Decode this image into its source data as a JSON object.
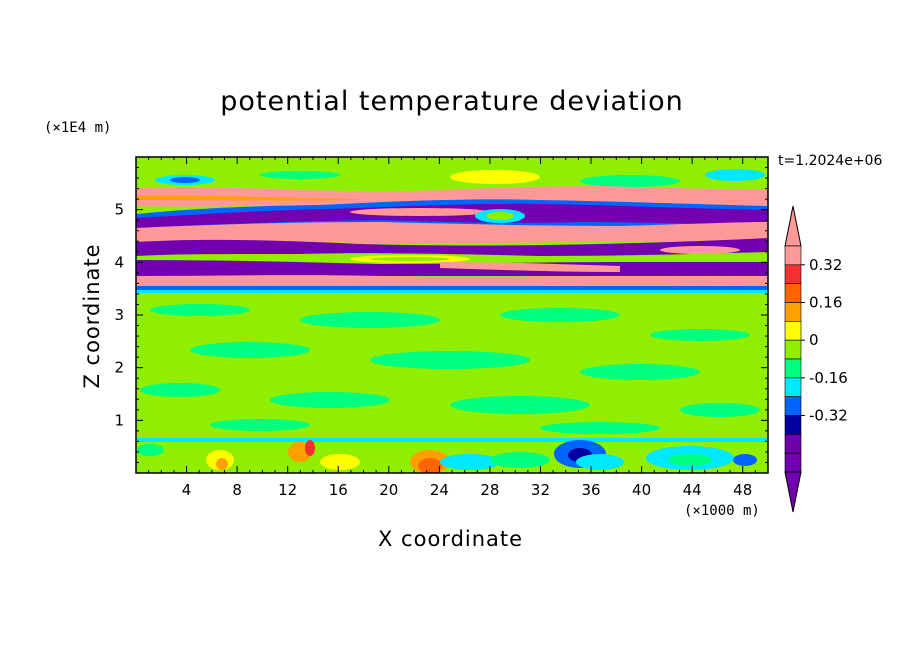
{
  "chart_data": {
    "type": "heatmap",
    "title": "potential temperature deviation",
    "xlabel": "X coordinate",
    "ylabel": "Z coordinate",
    "x_unit_label": "(×1000 m)",
    "y_unit_label": "(×1E4 m)",
    "annotation": "t=1.2024e+06",
    "xlim": [
      0,
      50
    ],
    "ylim": [
      0,
      6
    ],
    "x_ticks": [
      4,
      8,
      12,
      16,
      20,
      24,
      28,
      32,
      36,
      40,
      44,
      48
    ],
    "y_ticks": [
      1,
      2,
      3,
      4,
      5
    ],
    "colorbar": {
      "levels": [
        -0.48,
        -0.4,
        -0.32,
        -0.24,
        -0.16,
        -0.08,
        0,
        0.08,
        0.16,
        0.24,
        0.32,
        0.4
      ],
      "tick_labels": [
        "0.32",
        "0.16",
        "0",
        "-0.16",
        "-0.32"
      ],
      "tick_values": [
        0.32,
        0.16,
        0,
        -0.16,
        -0.32
      ],
      "colors_top_to_bottom": [
        "#ff9999",
        "#f53030",
        "#ff6400",
        "#ffa000",
        "#ffff00",
        "#90ee00",
        "#00ff7f",
        "#00e8ff",
        "#0064ff",
        "#0000a0",
        "#6d00a8",
        "#7200b0"
      ],
      "extend": "both"
    },
    "layers": [
      {
        "z_from": 5.6,
        "z_to": 6.0,
        "dominant": "#90ee00"
      },
      {
        "z_from": 5.2,
        "z_to": 5.6,
        "dominant": "#ff9999"
      },
      {
        "z_from": 4.8,
        "z_to": 5.2,
        "dominant": "#7200b0"
      },
      {
        "z_from": 4.4,
        "z_to": 4.8,
        "dominant": "#ff9999"
      },
      {
        "z_from": 4.2,
        "z_to": 4.4,
        "dominant": "#7200b0"
      },
      {
        "z_from": 3.9,
        "z_to": 4.2,
        "dominant": "#7200b0"
      },
      {
        "z_from": 3.5,
        "z_to": 3.9,
        "dominant": "#ff9999"
      },
      {
        "z_from": 3.3,
        "z_to": 3.5,
        "dominant": "#0064ff"
      },
      {
        "z_from": 0.6,
        "z_to": 3.3,
        "dominant": "#90ee00"
      },
      {
        "z_from": 0.0,
        "z_to": 0.6,
        "dominant": "#00e8ff"
      }
    ]
  }
}
